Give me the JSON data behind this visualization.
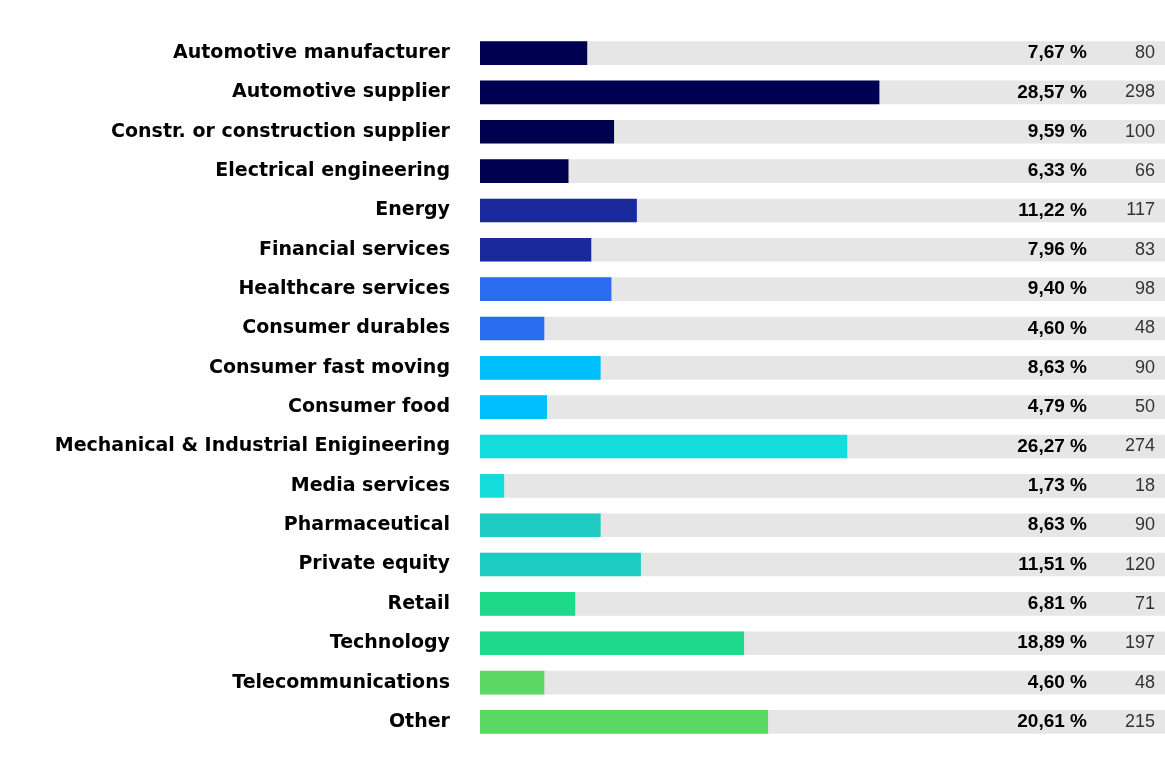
{
  "chart_data": {
    "type": "bar",
    "orientation": "horizontal",
    "tick_labels": "y",
    "xlim": [
      0,
      49
    ],
    "categories": [
      "Automotive manufacturer",
      "Automotive supplier",
      "Constr. or construction supplier",
      "Electrical engineering",
      "Energy",
      "Financial services",
      "Healthcare services",
      "Consumer durables",
      "Consumer fast moving",
      "Consumer food",
      "Mechanical & Industrial Enigineering",
      "Media services",
      "Pharmaceutical",
      "Private equity",
      "Retail",
      "Technology",
      "Telecommunications",
      "Other"
    ],
    "values": [
      7.67,
      28.57,
      9.59,
      6.33,
      11.22,
      7.96,
      9.4,
      4.6,
      8.63,
      4.79,
      26.27,
      1.73,
      8.63,
      11.51,
      6.81,
      18.89,
      4.6,
      20.61
    ],
    "colors": [
      "#000050",
      "#000050",
      "#000050",
      "#000050",
      "#1a2a9c",
      "#1a2a9c",
      "#2a6cf0",
      "#2a6cf0",
      "#00bfff",
      "#00bfff",
      "#14dcdc",
      "#14dcdc",
      "#1ecbc0",
      "#1ecbc0",
      "#1ed98a",
      "#1ed98a",
      "#5cd964",
      "#5cd964"
    ],
    "value_labels": [
      "7,67 %",
      "28,57 %",
      "9,59 %",
      "6,33 %",
      "11,22 %",
      "7,96 %",
      "9,40 %",
      "4,60 %",
      "8,63 %",
      "4,79 %",
      "26,27 %",
      "1,73 %",
      "8,63 %",
      "11,51 %",
      "6,81 %",
      "18,89 %",
      "4,60 %",
      "20,61 %"
    ],
    "annotations": [
      "80",
      "298",
      "100",
      "66",
      "117",
      "83",
      "98",
      "48",
      "90",
      "50",
      "274",
      "18",
      "90",
      "120",
      "71",
      "197",
      "48",
      "215"
    ],
    "legend": false
  }
}
